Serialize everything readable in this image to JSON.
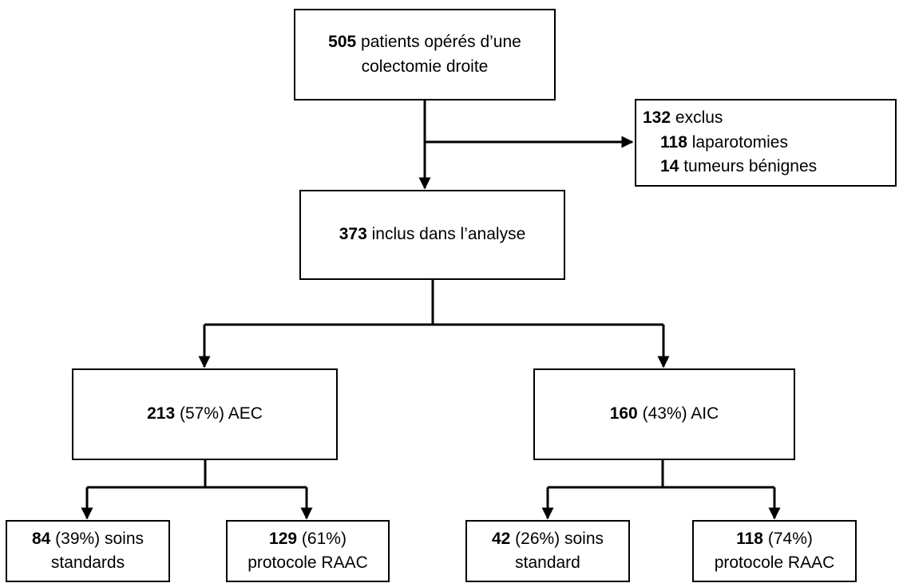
{
  "nodes": {
    "start": {
      "n": "505",
      "line1": "patients opérés d’une",
      "line2": "colectomie droite"
    },
    "excluded": {
      "n": "132",
      "label": "exclus",
      "items": [
        {
          "n": "118",
          "label": "laparotomies"
        },
        {
          "n": "14",
          "label": "tumeurs bénignes"
        }
      ]
    },
    "included": {
      "n": "373",
      "label": "inclus dans l’analyse"
    },
    "aec": {
      "n": "213",
      "label": "(57%) AEC"
    },
    "aic": {
      "n": "160",
      "label": "(43%) AIC"
    },
    "aec_std": {
      "n": "84",
      "label": "(39%) soins",
      "line2": "standards"
    },
    "aec_raac": {
      "n": "129",
      "label": "(61%)",
      "line2": "protocole RAAC"
    },
    "aic_std": {
      "n": "42",
      "label": "(26%) soins",
      "line2": "standard"
    },
    "aic_raac": {
      "n": "118",
      "label": "(74%)",
      "line2": "protocole RAAC"
    }
  },
  "edges": [
    {
      "from": "start",
      "to": "included"
    },
    {
      "from": "start",
      "to": "excluded"
    },
    {
      "from": "included",
      "to": "aec"
    },
    {
      "from": "included",
      "to": "aic"
    },
    {
      "from": "aec",
      "to": "aec_std"
    },
    {
      "from": "aec",
      "to": "aec_raac"
    },
    {
      "from": "aic",
      "to": "aic_std"
    },
    {
      "from": "aic",
      "to": "aic_raac"
    }
  ]
}
